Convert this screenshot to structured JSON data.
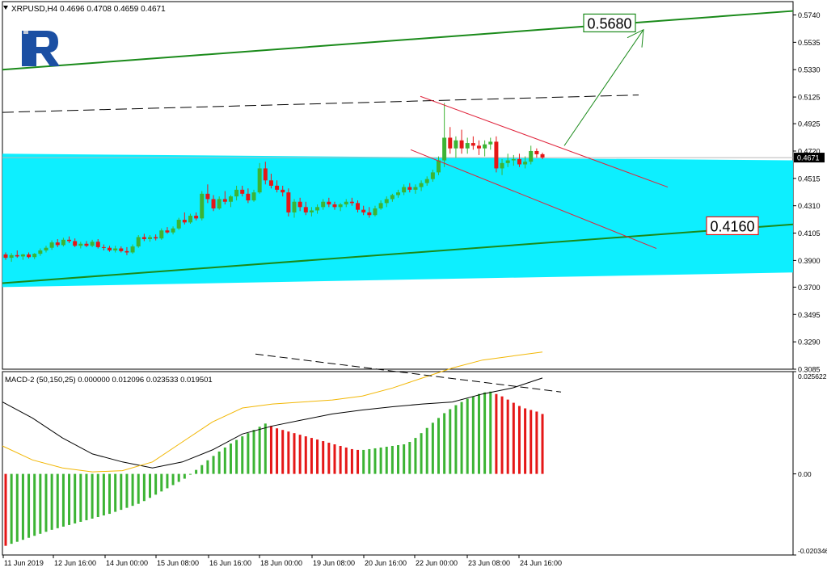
{
  "header": {
    "symbol": "XRPUSD,H4",
    "ohlc": "0.4696 0.4708 0.4659 0.4671"
  },
  "logo": {
    "name": "R"
  },
  "current_price_label": "0.4671",
  "target_up_label": "0.5680",
  "target_down_label": "0.4160",
  "macd_header": "MACD-2 (50,150,25) 0.000000 0.012096 0.023533 0.019501",
  "colors": {
    "bull": "#3cb434",
    "bear": "#e51717",
    "channel_band": "#00eeff",
    "trend_line": "#1a8a1a",
    "wedge": "#e0223a",
    "macd_main": "#000000",
    "macd_signal": "#f2b705",
    "up_target_border": "#1a8a1a",
    "down_target_border": "#e51717"
  },
  "chart_data": {
    "type": "candlestick",
    "symbol": "XRPUSD",
    "timeframe": "H4",
    "price_axis": {
      "ylim": [
        0.3085,
        0.584
      ],
      "ticks": [
        "0.5740",
        "0.5535",
        "0.5330",
        "0.5125",
        "0.4925",
        "0.4720",
        "0.4515",
        "0.4310",
        "0.4105",
        "0.3900",
        "0.3700",
        "0.3495",
        "0.3290",
        "0.3085"
      ]
    },
    "time_axis": {
      "ticks": [
        "11 Jun 2019",
        "12 Jun 16:00",
        "14 Jun 00:00",
        "15 Jun 08:00",
        "16 Jun 16:00",
        "18 Jun 00:00",
        "19 Jun 08:00",
        "20 Jun 16:00",
        "22 Jun 00:00",
        "23 Jun 08:00",
        "24 Jun 16:00"
      ]
    },
    "candles": [
      [
        0.3945,
        0.396,
        0.3905,
        0.392
      ],
      [
        0.392,
        0.3955,
        0.389,
        0.394
      ],
      [
        0.394,
        0.3975,
        0.392,
        0.393
      ],
      [
        0.393,
        0.395,
        0.3905,
        0.3945
      ],
      [
        0.3945,
        0.396,
        0.3915,
        0.3925
      ],
      [
        0.3925,
        0.3955,
        0.391,
        0.395
      ],
      [
        0.395,
        0.399,
        0.3935,
        0.3975
      ],
      [
        0.3975,
        0.401,
        0.396,
        0.3995
      ],
      [
        0.3995,
        0.405,
        0.398,
        0.4035
      ],
      [
        0.4035,
        0.406,
        0.4,
        0.4015
      ],
      [
        0.4015,
        0.407,
        0.4005,
        0.4055
      ],
      [
        0.4055,
        0.408,
        0.403,
        0.4045
      ],
      [
        0.4045,
        0.4065,
        0.4,
        0.401
      ],
      [
        0.401,
        0.404,
        0.399,
        0.4025
      ],
      [
        0.4025,
        0.4045,
        0.4,
        0.401
      ],
      [
        0.401,
        0.4055,
        0.4,
        0.404
      ],
      [
        0.404,
        0.406,
        0.399,
        0.4
      ],
      [
        0.4,
        0.402,
        0.3975,
        0.3995
      ],
      [
        0.3995,
        0.401,
        0.3965,
        0.3975
      ],
      [
        0.3975,
        0.401,
        0.396,
        0.399
      ],
      [
        0.399,
        0.4005,
        0.396,
        0.397
      ],
      [
        0.397,
        0.4,
        0.394,
        0.396
      ],
      [
        0.396,
        0.402,
        0.395,
        0.4005
      ],
      [
        0.4005,
        0.409,
        0.3995,
        0.4075
      ],
      [
        0.4075,
        0.41,
        0.4045,
        0.406
      ],
      [
        0.406,
        0.409,
        0.404,
        0.4075
      ],
      [
        0.4075,
        0.4095,
        0.405,
        0.4065
      ],
      [
        0.4065,
        0.414,
        0.4055,
        0.4125
      ],
      [
        0.4125,
        0.415,
        0.41,
        0.411
      ],
      [
        0.411,
        0.4155,
        0.4095,
        0.414
      ],
      [
        0.414,
        0.422,
        0.413,
        0.4205
      ],
      [
        0.4205,
        0.426,
        0.417,
        0.4185
      ],
      [
        0.4185,
        0.425,
        0.4175,
        0.4235
      ],
      [
        0.4235,
        0.426,
        0.42,
        0.4215
      ],
      [
        0.4215,
        0.442,
        0.42,
        0.44
      ],
      [
        0.44,
        0.447,
        0.433,
        0.436
      ],
      [
        0.436,
        0.439,
        0.427,
        0.429
      ],
      [
        0.429,
        0.438,
        0.428,
        0.436
      ],
      [
        0.436,
        0.442,
        0.432,
        0.434
      ],
      [
        0.434,
        0.439,
        0.43,
        0.438
      ],
      [
        0.438,
        0.446,
        0.435,
        0.443
      ],
      [
        0.443,
        0.446,
        0.438,
        0.44
      ],
      [
        0.44,
        0.444,
        0.433,
        0.435
      ],
      [
        0.435,
        0.443,
        0.434,
        0.441
      ],
      [
        0.441,
        0.463,
        0.44,
        0.459
      ],
      [
        0.459,
        0.464,
        0.447,
        0.45
      ],
      [
        0.45,
        0.455,
        0.444,
        0.446
      ],
      [
        0.446,
        0.45,
        0.441,
        0.443
      ],
      [
        0.443,
        0.446,
        0.438,
        0.441
      ],
      [
        0.441,
        0.444,
        0.423,
        0.426
      ],
      [
        0.426,
        0.436,
        0.422,
        0.434
      ],
      [
        0.434,
        0.437,
        0.427,
        0.43
      ],
      [
        0.43,
        0.434,
        0.424,
        0.426
      ],
      [
        0.426,
        0.43,
        0.423,
        0.4275
      ],
      [
        0.4275,
        0.432,
        0.425,
        0.43
      ],
      [
        0.43,
        0.436,
        0.428,
        0.434
      ],
      [
        0.434,
        0.437,
        0.43,
        0.432
      ],
      [
        0.432,
        0.434,
        0.428,
        0.43
      ],
      [
        0.43,
        0.433,
        0.427,
        0.432
      ],
      [
        0.432,
        0.436,
        0.43,
        0.434
      ],
      [
        0.434,
        0.437,
        0.431,
        0.433
      ],
      [
        0.433,
        0.435,
        0.426,
        0.428
      ],
      [
        0.428,
        0.431,
        0.424,
        0.426
      ],
      [
        0.426,
        0.43,
        0.422,
        0.424
      ],
      [
        0.424,
        0.431,
        0.423,
        0.429
      ],
      [
        0.429,
        0.435,
        0.428,
        0.433
      ],
      [
        0.433,
        0.438,
        0.43,
        0.436
      ],
      [
        0.436,
        0.44,
        0.434,
        0.439
      ],
      [
        0.439,
        0.443,
        0.437,
        0.441
      ],
      [
        0.441,
        0.447,
        0.439,
        0.445
      ],
      [
        0.445,
        0.448,
        0.441,
        0.443
      ],
      [
        0.443,
        0.447,
        0.44,
        0.445
      ],
      [
        0.445,
        0.45,
        0.442,
        0.448
      ],
      [
        0.448,
        0.453,
        0.446,
        0.451
      ],
      [
        0.451,
        0.458,
        0.449,
        0.456
      ],
      [
        0.456,
        0.468,
        0.454,
        0.465
      ],
      [
        0.465,
        0.508,
        0.46,
        0.482
      ],
      [
        0.482,
        0.49,
        0.47,
        0.474
      ],
      [
        0.474,
        0.483,
        0.467,
        0.48
      ],
      [
        0.48,
        0.488,
        0.47,
        0.474
      ],
      [
        0.474,
        0.482,
        0.47,
        0.478
      ],
      [
        0.478,
        0.483,
        0.473,
        0.476
      ],
      [
        0.476,
        0.48,
        0.469,
        0.474
      ],
      [
        0.474,
        0.48,
        0.468,
        0.477
      ],
      [
        0.477,
        0.482,
        0.473,
        0.479
      ],
      [
        0.479,
        0.483,
        0.456,
        0.459
      ],
      [
        0.459,
        0.466,
        0.454,
        0.463
      ],
      [
        0.463,
        0.47,
        0.46,
        0.465
      ],
      [
        0.465,
        0.469,
        0.461,
        0.466
      ],
      [
        0.466,
        0.47,
        0.46,
        0.462
      ],
      [
        0.462,
        0.468,
        0.459,
        0.464
      ],
      [
        0.464,
        0.476,
        0.462,
        0.472
      ],
      [
        0.472,
        0.474,
        0.467,
        0.4696
      ],
      [
        0.4696,
        0.4708,
        0.4659,
        0.4671
      ]
    ],
    "channel": {
      "band_top": [
        0.47,
        0.465
      ],
      "band_bottom": [
        0.37,
        0.381
      ],
      "upper_trend": [
        0.533,
        0.577
      ],
      "lower_trend": [
        0.373,
        0.417
      ],
      "dashed_resistance": [
        0.501,
        0.514
      ]
    },
    "macd": {
      "name": "MACD-2 (50,150,25)",
      "values": [
        0.0,
        0.012096,
        0.023533,
        0.019501
      ],
      "ylim": [
        -0.0203,
        0.0256
      ],
      "ticks": [
        "0.025622",
        "0.00",
        "-0.020346"
      ],
      "histogram": [
        -0.018,
        -0.0175,
        -0.017,
        -0.0165,
        -0.016,
        -0.0155,
        -0.015,
        -0.0145,
        -0.014,
        -0.0136,
        -0.0132,
        -0.0128,
        -0.0124,
        -0.012,
        -0.0116,
        -0.0112,
        -0.0108,
        -0.0104,
        -0.01,
        -0.0095,
        -0.009,
        -0.0085,
        -0.008,
        -0.0075,
        -0.0068,
        -0.006,
        -0.0052,
        -0.0044,
        -0.0036,
        -0.0028,
        -0.002,
        -0.0012,
        0.0,
        0.001,
        0.0022,
        0.0034,
        0.0045,
        0.0056,
        0.0066,
        0.0076,
        0.0085,
        0.0094,
        0.0102,
        0.011,
        0.0118,
        0.0126,
        0.012,
        0.0114,
        0.011,
        0.0106,
        0.0102,
        0.0098,
        0.0094,
        0.009,
        0.0086,
        0.0082,
        0.0078,
        0.0074,
        0.007,
        0.0066,
        0.0062,
        0.006,
        0.006,
        0.0062,
        0.0064,
        0.0066,
        0.0068,
        0.007,
        0.0072,
        0.0074,
        0.008,
        0.009,
        0.0102,
        0.0115,
        0.0128,
        0.014,
        0.0152,
        0.0162,
        0.0172,
        0.018,
        0.0188,
        0.0194,
        0.02,
        0.0204,
        0.0206,
        0.02,
        0.0194,
        0.0186,
        0.0178,
        0.017,
        0.0164,
        0.016,
        0.0156,
        0.015
      ],
      "main_line": [
        0.018,
        0.014,
        0.009,
        0.005,
        0.003,
        0.0015,
        0.003,
        0.006,
        0.01,
        0.012,
        0.0135,
        0.015,
        0.016,
        0.0168,
        0.0175,
        0.018,
        0.02,
        0.0215,
        0.024
      ],
      "signal_line": [
        0.007,
        0.0035,
        0.0015,
        0.0005,
        0.0008,
        0.003,
        0.008,
        0.013,
        0.0165,
        0.0175,
        0.018,
        0.0185,
        0.0195,
        0.0215,
        0.024,
        0.0265,
        0.0285,
        0.0295,
        0.0305
      ],
      "dashed_line": [
        0.03,
        0.0205
      ]
    }
  }
}
